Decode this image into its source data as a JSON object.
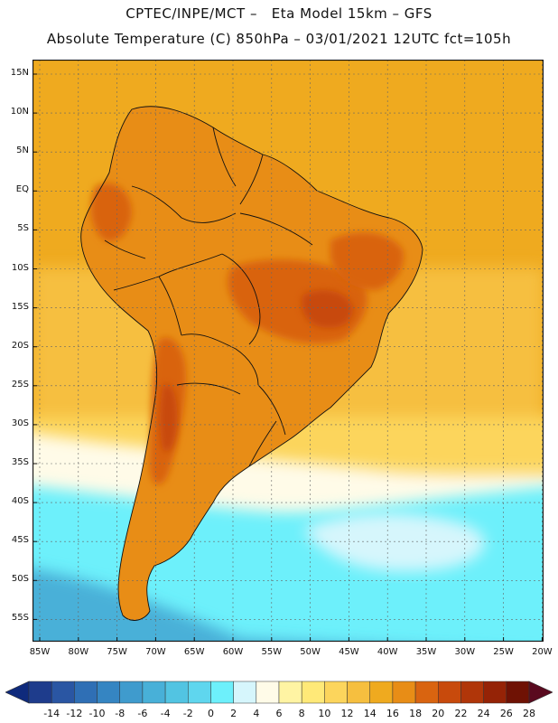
{
  "title_line1": "CPTEC/INPE/MCT –   Eta Model 15km – GFS",
  "title_line2": "Absolute Temperature (C) 850hPa – 03/01/2021 12UTC fct=105h",
  "lat_labels": [
    "15N",
    "10N",
    "5N",
    "EQ",
    "5S",
    "10S",
    "15S",
    "20S",
    "25S",
    "30S",
    "35S",
    "40S",
    "45S",
    "50S",
    "55S"
  ],
  "lon_labels": [
    "85W",
    "80W",
    "75W",
    "70W",
    "65W",
    "60W",
    "55W",
    "50W",
    "45W",
    "40W",
    "35W",
    "30W",
    "25W",
    "20W"
  ],
  "colorbar": {
    "labels": [
      "-14",
      "-12",
      "-10",
      "-8",
      "-6",
      "-4",
      "-2",
      "0",
      "2",
      "4",
      "6",
      "8",
      "10",
      "12",
      "14",
      "16",
      "18",
      "20",
      "22",
      "24",
      "26",
      "28"
    ],
    "colors": [
      "#1e3c8c",
      "#2a56a3",
      "#2f6fb5",
      "#3585c2",
      "#3f9bcd",
      "#48b0d8",
      "#52c4e2",
      "#5fd6ee",
      "#6df0fb",
      "#d6f6fc",
      "#fffbe8",
      "#fff4a3",
      "#ffe978",
      "#fcd55c",
      "#f6bf3f",
      "#efaa1f",
      "#e88d16",
      "#d96410",
      "#c84a0c",
      "#b03609",
      "#952306",
      "#6f1204"
    ],
    "low_end": "#0f2a7c",
    "high_end": "#5a0a1f"
  },
  "map_colors": {
    "ocean_warm": "#efaa1f",
    "ocean_mid": "#f6bf3f",
    "ocean_light": "#fcd55c",
    "cool_pale": "#fffbe8",
    "cool_cyan": "#6df0fb",
    "cool_light": "#d6f6fc",
    "cold_blue": "#48b0d8",
    "land_hot": "#e88d16",
    "land_hotter": "#d96410",
    "land_hottest": "#c84a0c"
  }
}
